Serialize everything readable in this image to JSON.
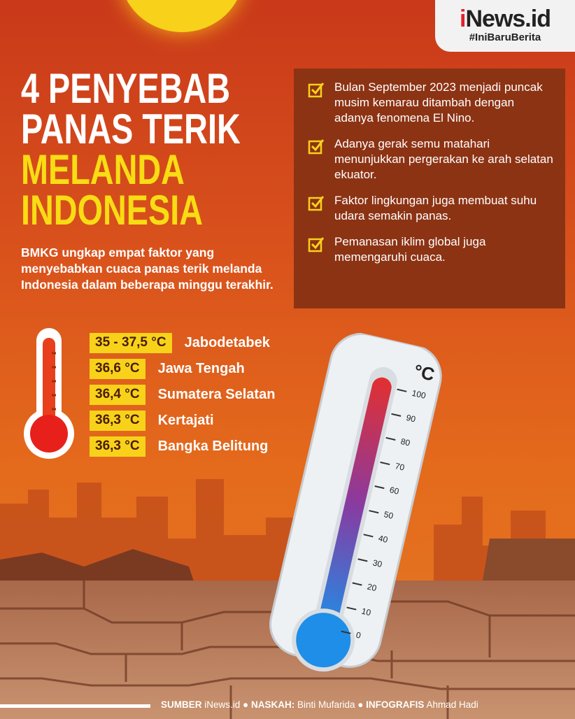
{
  "logo": {
    "brand_i": "i",
    "brand_rest": "News.id",
    "tagline": "#IniBaruBerita"
  },
  "title": {
    "line1": "4 PENYEBAB",
    "line2": "PANAS TERIK",
    "line3": "MELANDA",
    "line4": "INDONESIA"
  },
  "lead": "BMKG ungkap empat faktor yang menyebabkan cuaca panas terik melanda Indonesia dalam beberapa minggu terakhir.",
  "reasons": [
    "Bulan September 2023 menjadi puncak musim kemarau ditambah dengan adanya fenomena El Nino.",
    "Adanya gerak semu matahari menunjukkan pergerakan ke arah selatan ekuator.",
    "Faktor lingkungan juga membuat suhu udara semakin panas.",
    "Pemanasan iklim global juga memengaruhi cuaca."
  ],
  "temperatures": [
    {
      "value": "35 - 37,5 °C",
      "location": "Jabodetabek"
    },
    {
      "value": "36,6 °C",
      "location": "Jawa Tengah"
    },
    {
      "value": "36,4 °C",
      "location": "Sumatera Selatan"
    },
    {
      "value": "36,3 °C",
      "location": "Kertajati"
    },
    {
      "value": "36,3 °C",
      "location": "Bangka Belitung"
    }
  ],
  "thermometer": {
    "unit": "°C",
    "scale": [
      "100",
      "90",
      "80",
      "70",
      "60",
      "50",
      "40",
      "30",
      "20",
      "10",
      "0"
    ]
  },
  "credits": {
    "sumber_label": "SUMBER",
    "sumber": "iNews.id",
    "naskah_label": "NASKAH:",
    "naskah": "Binti Mufarida",
    "infografis_label": "INFOGRAFIS",
    "infografis": "Ahmad Hadi"
  },
  "colors": {
    "accent_yellow": "#f8dc14",
    "box": "#8c3314",
    "logo_red": "#e3202b"
  }
}
